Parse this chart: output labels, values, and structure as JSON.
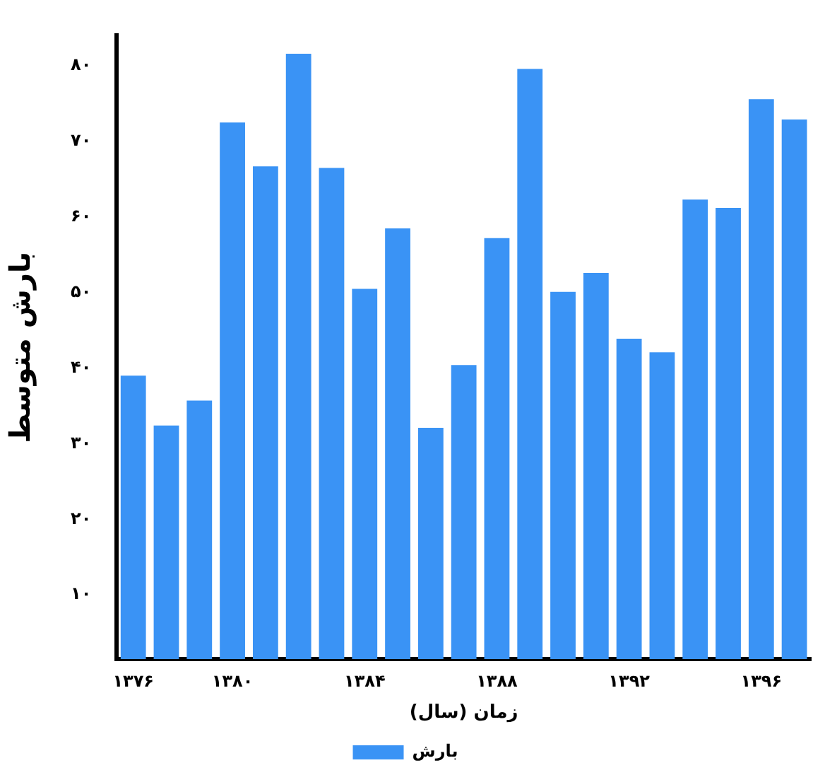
{
  "chart_data": {
    "type": "bar",
    "xlabel": "زمان (سال)",
    "ylabel": "بارش متوسط",
    "categories": [
      "۱۳۷۶",
      null,
      null,
      "۱۳۸۰",
      null,
      null,
      null,
      "۱۳۸۴",
      null,
      null,
      null,
      "۱۳۸۸",
      null,
      null,
      null,
      "۱۳۹۲",
      null,
      null,
      null,
      "۱۳۹۶",
      null
    ],
    "series": [
      {
        "name": "بارش",
        "color": "#3a93f5",
        "values": [
          39.0,
          32.4,
          35.7,
          72.5,
          66.7,
          81.6,
          66.5,
          50.5,
          58.5,
          32.1,
          40.4,
          57.2,
          79.6,
          50.1,
          52.6,
          43.9,
          42.1,
          62.3,
          61.2,
          75.6,
          72.9
        ]
      }
    ],
    "ylim": [
      1.5,
      84
    ],
    "yticks": [
      {
        "value": 10,
        "label": "۱۰"
      },
      {
        "value": 20,
        "label": "۲۰"
      },
      {
        "value": 30,
        "label": "۳۰"
      },
      {
        "value": 40,
        "label": "۴۰"
      },
      {
        "value": 50,
        "label": "۵۰"
      },
      {
        "value": 60,
        "label": "۶۰"
      },
      {
        "value": 70,
        "label": "۷۰"
      },
      {
        "value": 80,
        "label": "۸۰"
      }
    ],
    "grid": false,
    "legend": "bottom"
  }
}
